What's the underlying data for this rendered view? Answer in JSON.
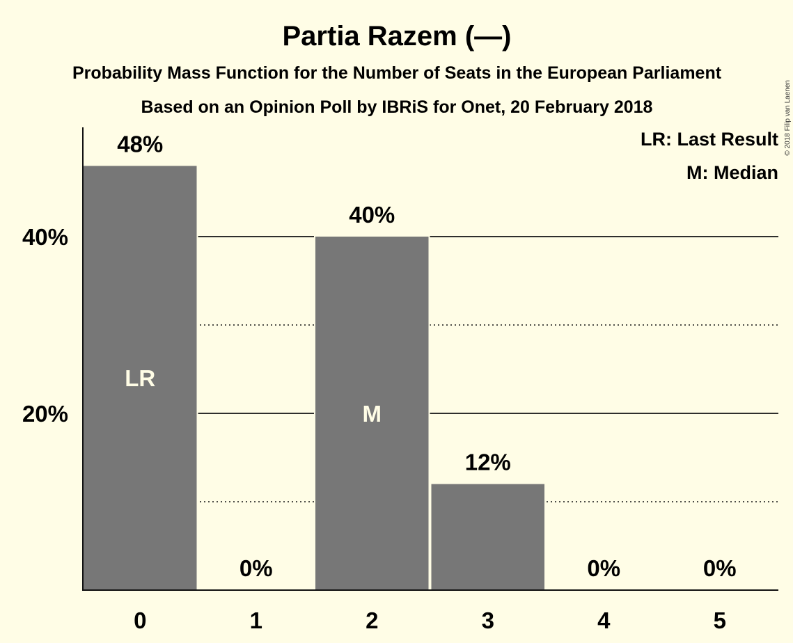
{
  "chart_data": {
    "type": "bar",
    "title": "Partia Razem (—)",
    "subtitle_1": "Probability Mass Function for the Number of Seats in the European Parliament",
    "subtitle_2": "Based on an Opinion Poll by IBRiS for Onet, 20 February 2018",
    "categories": [
      "0",
      "1",
      "2",
      "3",
      "4",
      "5"
    ],
    "values": [
      48,
      0,
      40,
      12,
      0,
      0
    ],
    "value_labels": [
      "48%",
      "0%",
      "40%",
      "12%",
      "0%",
      "0%"
    ],
    "bar_annotations": [
      "LR",
      "",
      "M",
      "",
      "",
      ""
    ],
    "ylim": [
      0,
      52
    ],
    "yticks": [
      20,
      40
    ],
    "ytick_labels": [
      "20%",
      "40%"
    ],
    "minor_gridlines": [
      10,
      30
    ],
    "legend": [
      "LR: Last Result",
      "M: Median"
    ],
    "legend_position": "top-right",
    "bar_color": "#777777",
    "background_color": "#FFFDE6"
  },
  "copyright": "© 2018 Filip van Laenen"
}
